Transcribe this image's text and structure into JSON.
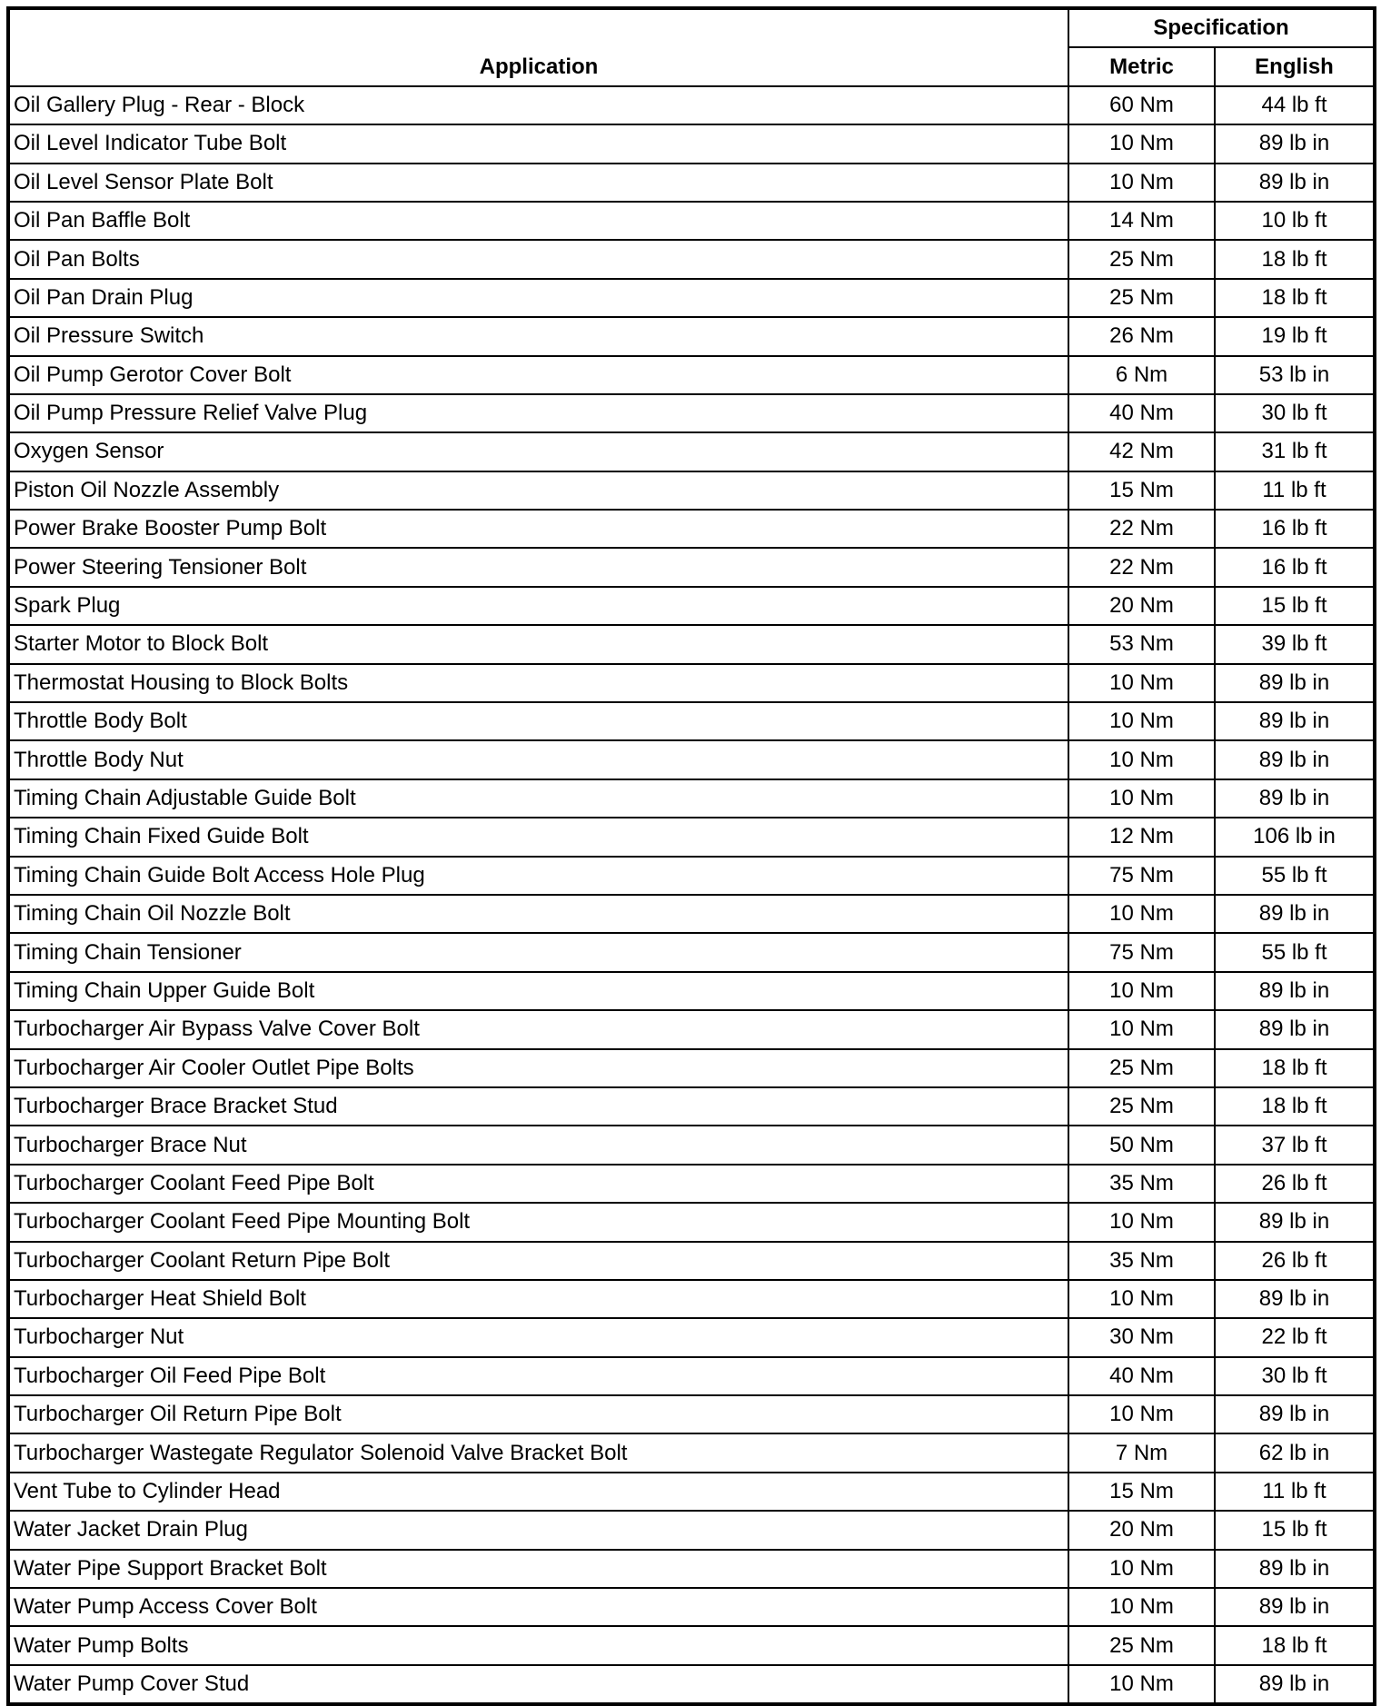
{
  "header": {
    "application": "Application",
    "specification": "Specification",
    "metric": "Metric",
    "english": "English"
  },
  "rows": [
    [
      "Oil Gallery Plug - Rear - Block",
      "60 Nm",
      "44 lb ft"
    ],
    [
      "Oil Level Indicator Tube Bolt",
      "10 Nm",
      "89 lb in"
    ],
    [
      "Oil Level Sensor Plate Bolt",
      "10 Nm",
      "89 lb in"
    ],
    [
      "Oil Pan Baffle Bolt",
      "14 Nm",
      "10 lb ft"
    ],
    [
      "Oil Pan Bolts",
      "25 Nm",
      "18 lb ft"
    ],
    [
      "Oil Pan Drain Plug",
      "25 Nm",
      "18 lb ft"
    ],
    [
      "Oil Pressure Switch",
      "26 Nm",
      "19 lb ft"
    ],
    [
      "Oil Pump Gerotor Cover Bolt",
      "6 Nm",
      "53 lb in"
    ],
    [
      "Oil Pump Pressure Relief Valve Plug",
      "40 Nm",
      "30 lb ft"
    ],
    [
      "Oxygen Sensor",
      "42 Nm",
      "31 lb ft"
    ],
    [
      "Piston Oil Nozzle Assembly",
      "15 Nm",
      "11 lb ft"
    ],
    [
      "Power Brake Booster Pump Bolt",
      "22 Nm",
      "16 lb ft"
    ],
    [
      "Power Steering Tensioner Bolt",
      "22 Nm",
      "16 lb ft"
    ],
    [
      "Spark Plug",
      "20 Nm",
      "15 lb ft"
    ],
    [
      "Starter Motor to Block Bolt",
      "53 Nm",
      "39 lb ft"
    ],
    [
      "Thermostat Housing to Block Bolts",
      "10 Nm",
      "89 lb in"
    ],
    [
      "Throttle Body Bolt",
      "10 Nm",
      "89 lb in"
    ],
    [
      "Throttle Body Nut",
      "10 Nm",
      "89 lb in"
    ],
    [
      "Timing Chain Adjustable Guide Bolt",
      "10 Nm",
      "89 lb in"
    ],
    [
      "Timing Chain Fixed Guide Bolt",
      "12 Nm",
      "106 lb in"
    ],
    [
      "Timing Chain Guide Bolt Access Hole Plug",
      "75 Nm",
      "55 lb ft"
    ],
    [
      "Timing Chain Oil Nozzle Bolt",
      "10 Nm",
      "89 lb in"
    ],
    [
      "Timing Chain Tensioner",
      "75 Nm",
      "55 lb ft"
    ],
    [
      "Timing Chain Upper Guide Bolt",
      "10 Nm",
      "89 lb in"
    ],
    [
      "Turbocharger Air Bypass Valve Cover Bolt",
      "10 Nm",
      "89 lb in"
    ],
    [
      "Turbocharger Air Cooler Outlet Pipe Bolts",
      "25 Nm",
      "18 lb ft"
    ],
    [
      "Turbocharger Brace Bracket Stud",
      "25 Nm",
      "18 lb ft"
    ],
    [
      "Turbocharger Brace Nut",
      "50 Nm",
      "37 lb ft"
    ],
    [
      "Turbocharger Coolant Feed Pipe Bolt",
      "35 Nm",
      "26 lb ft"
    ],
    [
      "Turbocharger Coolant Feed Pipe Mounting Bolt",
      "10 Nm",
      "89 lb in"
    ],
    [
      "Turbocharger Coolant Return Pipe Bolt",
      "35 Nm",
      "26 lb ft"
    ],
    [
      "Turbocharger Heat Shield Bolt",
      "10 Nm",
      "89 lb in"
    ],
    [
      "Turbocharger Nut",
      "30 Nm",
      "22 lb ft"
    ],
    [
      "Turbocharger Oil Feed Pipe Bolt",
      "40 Nm",
      "30 lb ft"
    ],
    [
      "Turbocharger Oil Return Pipe Bolt",
      "10 Nm",
      "89 lb in"
    ],
    [
      "Turbocharger Wastegate Regulator Solenoid Valve Bracket Bolt",
      "7 Nm",
      "62 lb in"
    ],
    [
      "Vent Tube to Cylinder Head",
      "15 Nm",
      "11 lb ft"
    ],
    [
      "Water Jacket Drain Plug",
      "20 Nm",
      "15 lb ft"
    ],
    [
      "Water Pipe Support Bracket Bolt",
      "10 Nm",
      "89 lb in"
    ],
    [
      "Water Pump Access Cover Bolt",
      "10 Nm",
      "89 lb in"
    ],
    [
      "Water Pump Bolts",
      "25 Nm",
      "18 lb ft"
    ],
    [
      "Water Pump Cover Stud",
      "10 Nm",
      "89 lb in"
    ]
  ]
}
